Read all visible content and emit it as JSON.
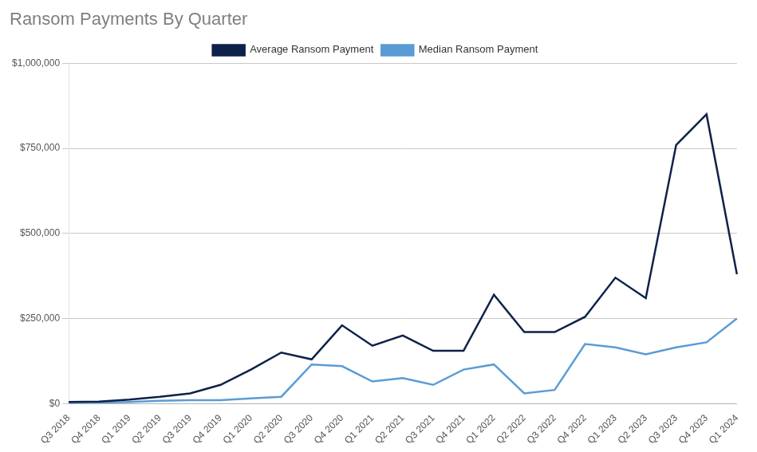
{
  "chart_data": {
    "type": "line",
    "title": "Ransom Payments By Quarter",
    "categories": [
      "Q3 2018",
      "Q4 2018",
      "Q1 2019",
      "Q2 2019",
      "Q3 2019",
      "Q4 2019",
      "Q1 2020",
      "Q2 2020",
      "Q3 2020",
      "Q4 2020",
      "Q1 2021",
      "Q2 2021",
      "Q3 2021",
      "Q4 2021",
      "Q1 2022",
      "Q2 2022",
      "Q3 2022",
      "Q4 2022",
      "Q1 2023",
      "Q2 2023",
      "Q3 2023",
      "Q4 2023",
      "Q1 2024"
    ],
    "series": [
      {
        "name": "Average Ransom Payment",
        "color": "#0d2149",
        "values": [
          5000,
          6000,
          12000,
          20000,
          30000,
          55000,
          100000,
          150000,
          130000,
          230000,
          170000,
          200000,
          155000,
          155000,
          320000,
          210000,
          210000,
          255000,
          370000,
          310000,
          760000,
          850000,
          380000
        ]
      },
      {
        "name": "Median Ransom Payment",
        "color": "#5b9bd5",
        "values": [
          2000,
          3000,
          5000,
          8000,
          10000,
          10000,
          15000,
          20000,
          115000,
          110000,
          65000,
          75000,
          55000,
          100000,
          115000,
          30000,
          40000,
          175000,
          165000,
          145000,
          165000,
          180000,
          250000
        ]
      }
    ],
    "ylim": [
      0,
      1000000
    ],
    "yticks": [
      {
        "value": 0,
        "label": "$0"
      },
      {
        "value": 250000,
        "label": "$250,000"
      },
      {
        "value": 500000,
        "label": "$500,000"
      },
      {
        "value": 750000,
        "label": "$750,000"
      },
      {
        "value": 1000000,
        "label": "$1,000,000"
      }
    ],
    "grid": true,
    "legend": "top"
  }
}
